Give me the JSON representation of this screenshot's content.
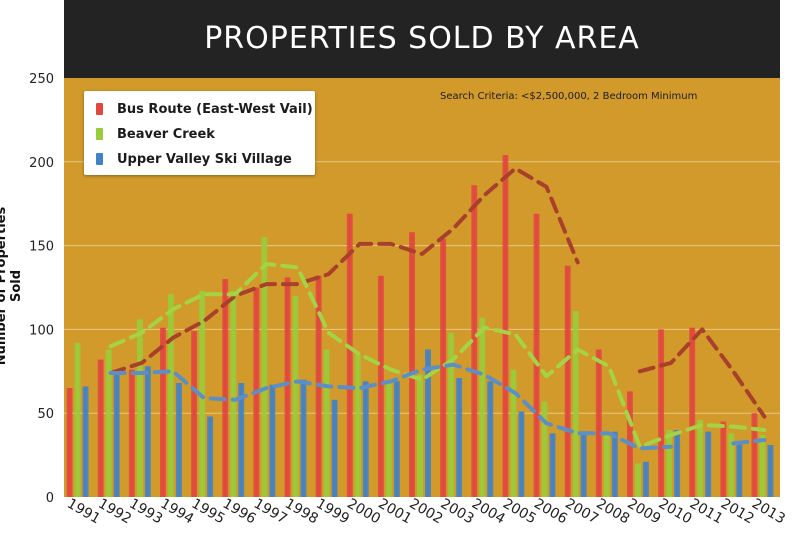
{
  "title": "PROPERTIES SOLD BY AREA",
  "criteria": "Search Criteria: <$2,500,000, 2 Bedroom Minimum",
  "colors": {
    "plot_bg": "#d19a2b",
    "title_bg": "#242323",
    "grid": "#e7c784",
    "bus": "#e2463f",
    "beaver": "#9acc3a",
    "upper": "#3f82c8",
    "bus_trend": "#a8402b",
    "beaver_trend": "#a4d345",
    "upper_trend": "#5d8fc7"
  },
  "chart_data": {
    "type": "bar",
    "title": "PROPERTIES SOLD BY AREA",
    "xlabel": "",
    "ylabel": "Number of Properties Sold",
    "ylim": [
      0,
      250
    ],
    "yticks": [
      "0",
      "50",
      "100",
      "150",
      "200",
      "250"
    ],
    "grid": true,
    "legend_position": "top-left",
    "categories": [
      "1991",
      "1992",
      "1993",
      "1994",
      "1995",
      "1996",
      "1997",
      "1998",
      "1999",
      "2000",
      "2001",
      "2002",
      "2003",
      "2004",
      "2005",
      "2006",
      "2007",
      "2008",
      "2009",
      "2010",
      "2011",
      "2012",
      "2013"
    ],
    "series": [
      {
        "name": "Bus Route (East-West Vail)",
        "values": [
          65,
          82,
          76,
          101,
          99,
          130,
          125,
          131,
          132,
          169,
          132,
          158,
          154,
          186,
          204,
          169,
          138,
          88,
          63,
          100,
          101,
          45,
          50
        ]
      },
      {
        "name": "Beaver Creek",
        "values": [
          92,
          88,
          106,
          121,
          123,
          123,
          155,
          120,
          88,
          85,
          68,
          73,
          98,
          107,
          76,
          57,
          111,
          38,
          20,
          40,
          46,
          38,
          37
        ]
      },
      {
        "name": "Upper Valley Ski Village",
        "values": [
          66,
          73,
          78,
          68,
          48,
          68,
          67,
          70,
          58,
          69,
          69,
          88,
          71,
          69,
          51,
          38,
          38,
          39,
          21,
          40,
          39,
          32,
          31
        ]
      }
    ],
    "trendlines": [
      {
        "values": [
          null,
          74,
          80,
          95,
          105,
          120,
          127,
          127,
          133,
          151,
          151,
          145,
          160,
          180,
          196,
          185,
          140,
          null,
          75,
          80,
          100,
          75,
          48
        ]
      },
      {
        "values": [
          null,
          90,
          98,
          112,
          121,
          121,
          139,
          137,
          98,
          85,
          76,
          70,
          82,
          101,
          97,
          72,
          88,
          78,
          30,
          37,
          43,
          42,
          40
        ]
      },
      {
        "values": [
          null,
          74,
          74,
          75,
          59,
          58,
          65,
          69,
          66,
          65,
          69,
          76,
          79,
          73,
          62,
          44,
          38,
          38,
          29,
          30,
          null,
          32,
          34
        ]
      }
    ]
  },
  "legend": [
    {
      "label": "Bus Route (East-West Vail)"
    },
    {
      "label": "Beaver Creek"
    },
    {
      "label": "Upper Valley Ski Village"
    }
  ]
}
